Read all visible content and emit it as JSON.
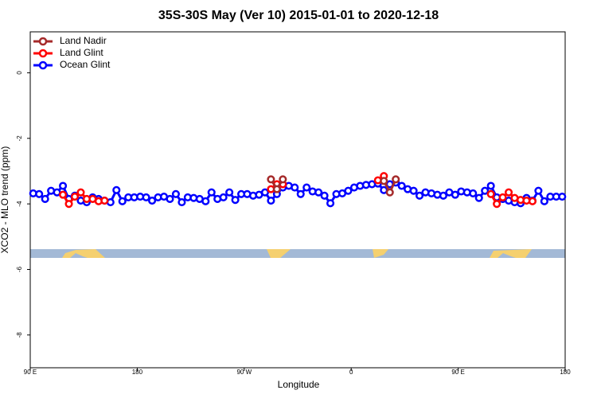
{
  "chart_data": {
    "type": "line",
    "title": "35S-30S May (Ver 10)   2015-01-01 to 2020-12-18",
    "x_label": "Longitude",
    "y_label": "XCO2 - MLO trend (ppm)",
    "xlim": [
      90,
      540
    ],
    "ylim": [
      -9,
      1.25
    ],
    "xticks": [
      {
        "value": 90,
        "label": "90 E"
      },
      180,
      {
        "value": 270,
        "label": "90 W"
      },
      {
        "value": 360,
        "label": "0"
      },
      {
        "value": 450,
        "label": "90 E"
      },
      {
        "value": 540,
        "label": "180"
      }
    ],
    "yticks": [
      0,
      -2,
      -4,
      -6,
      -8
    ],
    "grid": false,
    "legend": "top-left",
    "series": [
      {
        "name": "Land Nadir",
        "color": "#a52a2a",
        "x": [
          292.5,
          297.5,
          302.5,
          340,
          387.5,
          392.5,
          397.5
        ],
        "values": [
          -3.25,
          -3.55,
          -3.25,
          null,
          -3.3,
          -3.65,
          -3.25
        ]
      },
      {
        "name": "Land Glint",
        "color": "#ff0000",
        "x": [
          117.5,
          122.5,
          127.5,
          132.5,
          137.5,
          142.5,
          147.5,
          152.5,
          220,
          292.5,
          297.5,
          302.5,
          340,
          382.5,
          387.5,
          430,
          477.5,
          482.5,
          487.5,
          492.5,
          497.5,
          502.5,
          507.5,
          512.5
        ],
        "values": [
          -3.72,
          -4.0,
          -3.78,
          -3.65,
          -3.85,
          -3.85,
          -3.92,
          -3.9,
          null,
          -3.55,
          -3.4,
          -3.4,
          null,
          -3.28,
          -3.15,
          null,
          -3.7,
          -4.0,
          -3.8,
          -3.65,
          -3.82,
          -3.88,
          -3.9,
          -3.92
        ]
      },
      {
        "name": "Ocean Glint",
        "color": "#0000ff",
        "x": [
          92.5,
          97.5,
          102.5,
          107.5,
          112.5,
          117.5,
          122.5,
          127.5,
          132.5,
          137.5,
          142.5,
          147.5,
          152.5,
          157.5,
          162.5,
          167.5,
          172.5,
          177.5,
          182.5,
          187.5,
          192.5,
          197.5,
          202.5,
          207.5,
          212.5,
          217.5,
          222.5,
          227.5,
          232.5,
          237.5,
          242.5,
          247.5,
          252.5,
          257.5,
          262.5,
          267.5,
          272.5,
          277.5,
          282.5,
          287.5,
          292.5,
          297.5,
          302.5,
          307.5,
          312.5,
          317.5,
          322.5,
          327.5,
          332.5,
          337.5,
          342.5,
          347.5,
          352.5,
          357.5,
          362.5,
          367.5,
          372.5,
          377.5,
          382.5,
          387.5,
          392.5,
          397.5,
          402.5,
          407.5,
          412.5,
          417.5,
          422.5,
          427.5,
          432.5,
          437.5,
          442.5,
          447.5,
          452.5,
          457.5,
          462.5,
          467.5,
          472.5,
          477.5,
          482.5,
          487.5,
          492.5,
          497.5,
          502.5,
          507.5,
          512.5,
          517.5,
          522.5,
          527.5,
          532.5,
          537.5
        ],
        "values": [
          -3.68,
          -3.7,
          -3.85,
          -3.6,
          -3.65,
          -3.45,
          -3.85,
          -3.75,
          -3.9,
          -3.95,
          -3.8,
          -3.85,
          -3.9,
          -3.95,
          -3.58,
          -3.92,
          -3.8,
          -3.8,
          -3.78,
          -3.8,
          -3.9,
          -3.8,
          -3.78,
          -3.85,
          -3.7,
          -3.95,
          -3.8,
          -3.82,
          -3.85,
          -3.92,
          -3.65,
          -3.85,
          -3.8,
          -3.65,
          -3.88,
          -3.7,
          -3.7,
          -3.75,
          -3.72,
          -3.65,
          -3.9,
          -3.7,
          -3.5,
          -3.45,
          -3.5,
          -3.7,
          -3.5,
          -3.62,
          -3.65,
          -3.75,
          -3.98,
          -3.7,
          -3.68,
          -3.6,
          -3.5,
          -3.45,
          -3.42,
          -3.4,
          -3.38,
          -3.58,
          -3.4,
          -3.35,
          -3.45,
          -3.55,
          -3.6,
          -3.75,
          -3.65,
          -3.68,
          -3.72,
          -3.75,
          -3.65,
          -3.72,
          -3.62,
          -3.65,
          -3.68,
          -3.82,
          -3.6,
          -3.45,
          -3.8,
          -3.85,
          -3.9,
          -3.95,
          -3.98,
          -3.82,
          -3.9,
          -3.6,
          -3.92,
          -3.78,
          -3.78,
          -3.78
        ]
      }
    ]
  }
}
